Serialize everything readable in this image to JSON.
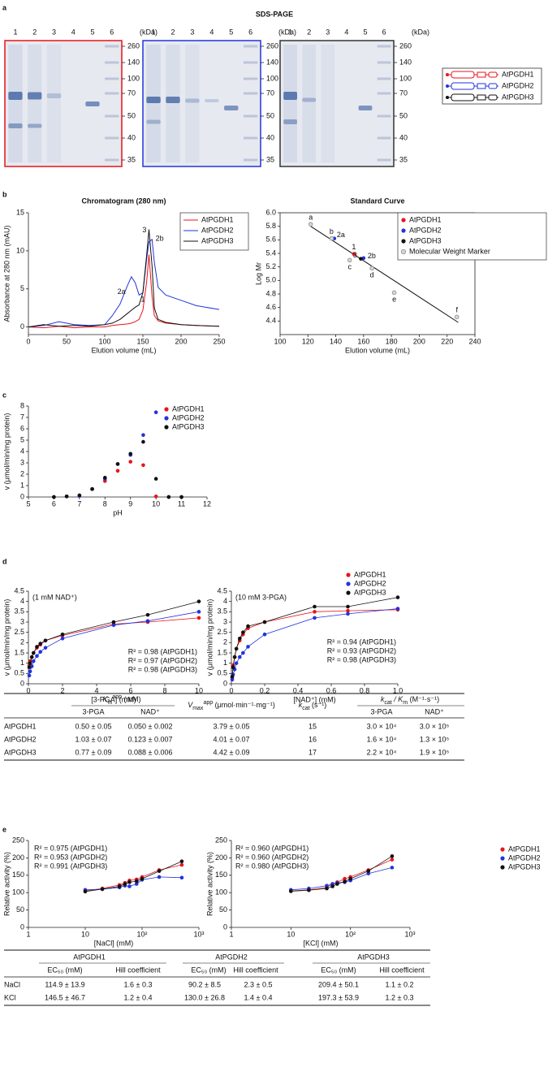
{
  "panel_labels": [
    "a",
    "b",
    "c",
    "d",
    "e"
  ],
  "sds_page": {
    "title": "SDS-PAGE",
    "lanes": [
      "1",
      "2",
      "3",
      "4",
      "5",
      "6"
    ],
    "unit": "(kDa)",
    "markers": [
      260,
      140,
      100,
      70,
      50,
      40,
      35
    ]
  },
  "constructs": [
    "AtPGDH1",
    "AtPGDH2",
    "AtPGDH3"
  ],
  "chart_data": [
    {
      "type": "line",
      "title": "Chromatogram (280 nm)",
      "xlabel": "Elution volume (mL)",
      "ylabel": "Absorbance at 280 nm (mAU)",
      "x": [
        0,
        20,
        40,
        60,
        80,
        100,
        110,
        120,
        130,
        135,
        140,
        145,
        150,
        155,
        158,
        162,
        165,
        170,
        180,
        200,
        220,
        250
      ],
      "series": [
        {
          "name": "AtPGDH1",
          "color": "#e8141b",
          "values": [
            0,
            -0.1,
            0.1,
            -0.1,
            0,
            0,
            0.2,
            0.3,
            0.4,
            0.5,
            0.7,
            1.0,
            2.2,
            6.0,
            9.5,
            4.0,
            1.5,
            0.8,
            0.5,
            0.3,
            0.2,
            0.1
          ]
        },
        {
          "name": "AtPGDH2",
          "color": "#2233dd",
          "values": [
            0,
            0.2,
            0.7,
            0.3,
            0.2,
            0.3,
            1.5,
            3.0,
            5.5,
            6.6,
            5.8,
            4.2,
            4.5,
            9.0,
            11.2,
            11.5,
            8.5,
            5.2,
            4.2,
            3.5,
            2.8,
            2.3
          ]
        },
        {
          "name": "AtPGDH3",
          "color": "#111111",
          "values": [
            0,
            0.3,
            0.1,
            0.2,
            0.1,
            0.3,
            0.5,
            1.0,
            1.8,
            2.2,
            2.6,
            2.9,
            4.5,
            9.5,
            12.8,
            8.0,
            2.5,
            1.0,
            0.6,
            0.3,
            0.2,
            0.1
          ]
        }
      ],
      "annotations": [
        "1",
        "2a",
        "2b",
        "3"
      ],
      "xlim": [
        0,
        250
      ],
      "xticks": [
        0,
        50,
        100,
        150,
        200,
        250
      ],
      "ylim": [
        -1,
        15
      ],
      "yticks": [
        0,
        5,
        10,
        15
      ],
      "legend": "upper right"
    },
    {
      "type": "scatter",
      "title": "Standard Curve",
      "xlabel": "Elution volume (mL)",
      "ylabel": "Log Mr",
      "series": [
        {
          "name": "AtPGDH1",
          "color": "#e8141b",
          "x": [
            153
          ],
          "values": [
            5.39
          ],
          "point_labels": [
            "1"
          ]
        },
        {
          "name": "AtPGDH2",
          "color": "#2233dd",
          "x": [
            139,
            160
          ],
          "values": [
            5.62,
            5.33
          ],
          "point_labels": [
            "2a",
            "2b"
          ]
        },
        {
          "name": "AtPGDH3",
          "color": "#111111",
          "x": [
            158
          ],
          "values": [
            5.32
          ],
          "point_labels": [
            "3"
          ]
        },
        {
          "name": "Molecular Weight Marker",
          "color": "#9a9a9a",
          "x": [
            122,
            137,
            150,
            166,
            182,
            227
          ],
          "values": [
            5.83,
            5.62,
            5.3,
            5.18,
            4.82,
            4.46
          ],
          "point_labels": [
            "a",
            "b",
            "c",
            "d",
            "e",
            "f"
          ]
        }
      ],
      "fit": {
        "x": [
          122,
          228
        ],
        "y": [
          5.8,
          4.38
        ]
      },
      "xlim": [
        100,
        240
      ],
      "xticks": [
        100,
        120,
        140,
        160,
        180,
        200,
        220,
        240
      ],
      "ylim": [
        4.2,
        6.0
      ],
      "yticks": [
        4.4,
        4.6,
        4.8,
        {
          "value": 5,
          "label": "5.0"
        },
        5.2,
        5.4,
        5.6,
        5.8,
        {
          "value": 6,
          "label": "6.0"
        }
      ],
      "legend": "upper right"
    },
    {
      "type": "scatter",
      "xlabel": "pH",
      "ylabel": "v (μmol/min/mg protein)",
      "x": [
        6,
        6.5,
        7,
        7.5,
        8,
        8.5,
        9,
        9.5,
        10,
        10.5,
        11
      ],
      "series": [
        {
          "name": "AtPGDH1",
          "color": "#e8141b",
          "values": [
            0,
            0.05,
            0.1,
            0.7,
            1.4,
            2.3,
            3.1,
            2.8,
            0.05,
            0,
            0
          ]
        },
        {
          "name": "AtPGDH2",
          "color": "#2233dd",
          "values": [
            0,
            0.05,
            0.1,
            0.7,
            1.6,
            2.9,
            3.7,
            5.45,
            7.45,
            0,
            0
          ]
        },
        {
          "name": "AtPGDH3",
          "color": "#111111",
          "values": [
            0,
            0.05,
            0.15,
            0.7,
            1.7,
            2.9,
            3.8,
            4.85,
            1.6,
            0,
            0
          ]
        }
      ],
      "xlim": [
        5,
        12
      ],
      "xticks": [
        5,
        6,
        7,
        8,
        9,
        10,
        11,
        12
      ],
      "ylim": [
        0,
        8
      ],
      "yticks": [
        0,
        1,
        2,
        3,
        4,
        5,
        6,
        7,
        8
      ],
      "legend": "upper left"
    },
    {
      "type": "scatter",
      "xlabel": "[3-PGA] (mM)",
      "ylabel": "v (μmol/min/mg protein)",
      "x": [
        0.05,
        0.1,
        0.2,
        0.3,
        0.5,
        0.7,
        1,
        2,
        5,
        7,
        10
      ],
      "series": [
        {
          "name": "AtPGDH1",
          "color": "#e8141b",
          "values": [
            0.9,
            1.1,
            1.3,
            1.5,
            1.75,
            1.9,
            2.1,
            2.35,
            2.9,
            3.0,
            3.2
          ]
        },
        {
          "name": "AtPGDH2",
          "color": "#2233dd",
          "values": [
            0.4,
            0.6,
            0.85,
            1.1,
            1.35,
            1.55,
            1.75,
            2.2,
            2.85,
            3.05,
            3.5
          ]
        },
        {
          "name": "AtPGDH3",
          "color": "#111111",
          "values": [
            0.8,
            1.0,
            1.3,
            1.5,
            1.8,
            1.95,
            2.1,
            2.4,
            3.0,
            3.35,
            4.0
          ]
        }
      ],
      "annotations": [
        "(1 mM NAD⁺)",
        "R² = 0.98 (AtPGDH1)",
        "R² = 0.97 (AtPGDH2)",
        "R² = 0.98 (AtPGDH3)"
      ],
      "xlim": [
        0,
        10
      ],
      "xticks": [
        0,
        2,
        4,
        6,
        8,
        10
      ],
      "ylim": [
        0,
        4.5
      ],
      "yticks": [
        0,
        0.5,
        1,
        1.5,
        2,
        2.5,
        3,
        3.5,
        4,
        4.5
      ]
    },
    {
      "type": "scatter",
      "xlabel": "[NAD⁺] (mM)",
      "ylabel": "v (μmol/min/mg protein)",
      "x": [
        0.005,
        0.01,
        0.02,
        0.03,
        0.05,
        0.07,
        0.1,
        0.2,
        0.5,
        0.7,
        1
      ],
      "series": [
        {
          "name": "AtPGDH1",
          "color": "#e8141b",
          "values": [
            0.3,
            0.9,
            1.3,
            1.7,
            2.1,
            2.4,
            2.7,
            3.0,
            3.5,
            3.55,
            3.6
          ]
        },
        {
          "name": "AtPGDH2",
          "color": "#2233dd",
          "values": [
            0.2,
            0.45,
            0.7,
            1.0,
            1.3,
            1.5,
            1.8,
            2.4,
            3.2,
            3.4,
            3.65
          ]
        },
        {
          "name": "AtPGDH3",
          "color": "#111111",
          "values": [
            0.35,
            0.8,
            1.3,
            1.7,
            2.2,
            2.5,
            2.8,
            3.0,
            3.75,
            3.75,
            4.2
          ]
        }
      ],
      "annotations": [
        "(10 mM 3-PGA)",
        "R² = 0.94 (AtPGDH1)",
        "R² = 0.93 (AtPGDH2)",
        "R² = 0.98 (AtPGDH3)"
      ],
      "xlim": [
        0,
        1
      ],
      "xticks": [
        0,
        0.2,
        0.4,
        0.6,
        0.8,
        {
          "value": 1,
          "label": "1.0"
        }
      ],
      "ylim": [
        0,
        4.5
      ],
      "yticks": [
        0,
        0.5,
        1,
        1.5,
        2,
        2.5,
        3,
        3.5,
        4,
        4.5
      ],
      "legend": "upper right"
    },
    {
      "type": "scatter",
      "xlabel": "[NaCl] (mM)",
      "ylabel": "Relative activity (%)",
      "log_x": true,
      "x": [
        10,
        20,
        40,
        50,
        60,
        80,
        100,
        200,
        500
      ],
      "series": [
        {
          "name": "AtPGDH1",
          "color": "#e8141b",
          "values": [
            105,
            112,
            122,
            128,
            135,
            138,
            145,
            165,
            180
          ]
        },
        {
          "name": "AtPGDH2",
          "color": "#2233dd",
          "values": [
            108,
            110,
            115,
            120,
            118,
            125,
            137,
            145,
            143
          ]
        },
        {
          "name": "AtPGDH3",
          "color": "#111111",
          "values": [
            103,
            110,
            118,
            125,
            130,
            133,
            140,
            162,
            190
          ]
        }
      ],
      "annotations": [
        "R² = 0.975 (AtPGDH1)",
        "R² = 0.953 (AtPGDH2)",
        "R² = 0.991 (AtPGDH3)"
      ],
      "xlim": [
        1,
        1000
      ],
      "xticks": [
        1,
        10,
        {
          "value": 100,
          "label": "10²"
        },
        {
          "value": 1000,
          "label": "10³"
        }
      ],
      "ylim": [
        0,
        250
      ],
      "yticks": [
        0,
        50,
        100,
        150,
        200,
        250
      ]
    },
    {
      "type": "scatter",
      "xlabel": "[KCl] (mM)",
      "ylabel": "Relative activity (%)",
      "log_x": true,
      "x": [
        10,
        20,
        40,
        50,
        60,
        80,
        100,
        200,
        500
      ],
      "series": [
        {
          "name": "AtPGDH1",
          "color": "#e8141b",
          "values": [
            105,
            108,
            115,
            125,
            130,
            140,
            145,
            165,
            195
          ]
        },
        {
          "name": "AtPGDH2",
          "color": "#2233dd",
          "values": [
            108,
            112,
            120,
            125,
            128,
            130,
            135,
            155,
            172
          ]
        },
        {
          "name": "AtPGDH3",
          "color": "#111111",
          "values": [
            104,
            107,
            112,
            118,
            125,
            132,
            140,
            162,
            205
          ]
        }
      ],
      "annotations": [
        "R² = 0.960 (AtPGDH1)",
        "R² = 0.960 (AtPGDH2)",
        "R² = 0.980 (AtPGDH3)"
      ],
      "xlim": [
        1,
        1000
      ],
      "xticks": [
        1,
        10,
        {
          "value": 100,
          "label": "10²"
        },
        {
          "value": 1000,
          "label": "10³"
        }
      ],
      "ylim": [
        0,
        250
      ],
      "yticks": [
        0,
        50,
        100,
        150,
        200,
        250
      ],
      "legend": "upper right"
    }
  ],
  "kinetics_table": {
    "header": {
      "km": [
        "K",
        "m",
        "app",
        " (mM)"
      ],
      "vmax": [
        "V",
        "max",
        "app",
        " (μmol·min⁻¹·mg⁻¹)"
      ],
      "kcat": [
        "k",
        "cat",
        " (s⁻¹)"
      ],
      "kcat_km": [
        "k",
        "cat",
        " / K",
        "m",
        " (M⁻¹·s⁻¹)"
      ],
      "sub": [
        "3-PGA",
        "NAD⁺",
        "3-PGA",
        "NAD⁺"
      ]
    },
    "rows": [
      [
        "AtPGDH1",
        "0.50 ± 0.05",
        "0.050 ± 0.002",
        "3.79 ± 0.05",
        "15",
        "3.0 × 10⁴",
        "3.0 × 10⁵"
      ],
      [
        "AtPGDH2",
        "1.03 ± 0.07",
        "0.123 ± 0.007",
        "4.01 ± 0.07",
        "16",
        "1.6 × 10⁴",
        "1.3 × 10⁵"
      ],
      [
        "AtPGDH3",
        "0.77 ± 0.09",
        "0.088 ± 0.006",
        "4.42 ± 0.09",
        "17",
        "2.2 × 10⁴",
        "1.9 × 10⁵"
      ]
    ]
  },
  "salt_table": {
    "groups": [
      "AtPGDH1",
      "AtPGDH2",
      "AtPGDH3"
    ],
    "sub": [
      "EC₅₀ (mM)",
      "Hill coefficient"
    ],
    "rows": [
      [
        "NaCl",
        "114.9 ± 13.9",
        "1.6 ± 0.3",
        "90.2 ± 8.5",
        "2.3 ± 0.5",
        "209.4 ± 50.1",
        "1.1 ± 0.2"
      ],
      [
        "KCl",
        "146.5 ± 46.7",
        "1.2 ± 0.4",
        "130.0 ± 26.8",
        "1.4 ± 0.4",
        "197.3 ± 53.9",
        "1.2 ± 0.3"
      ]
    ]
  }
}
